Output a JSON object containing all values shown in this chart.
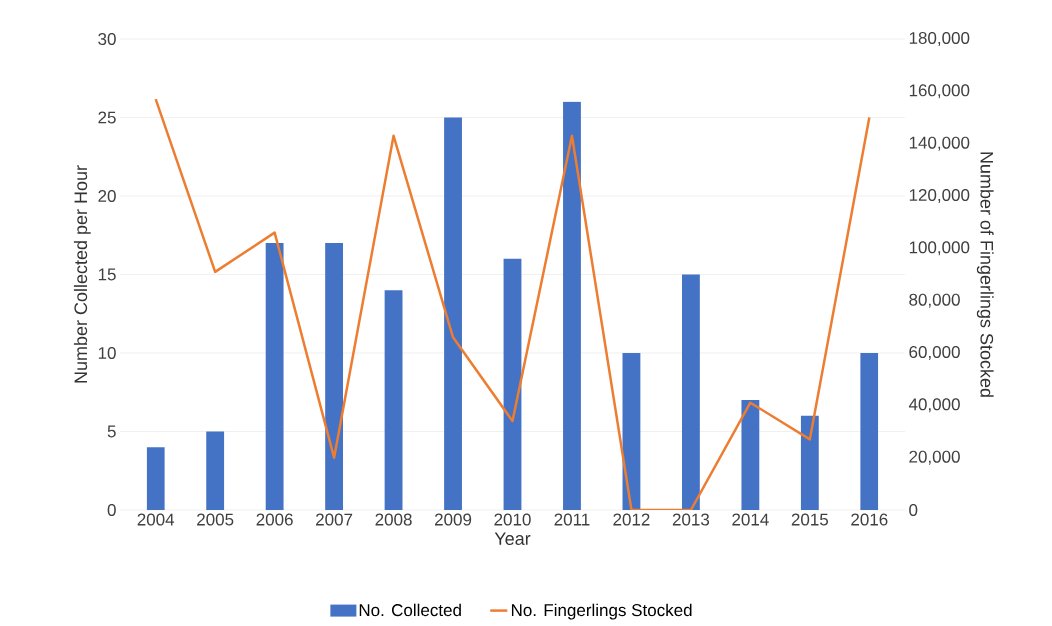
{
  "chart_data": {
    "type": "bar",
    "xlabel": "Year",
    "ylabel": "Number Collected per Hour",
    "y2label": "Number of Fingerlings Stocked",
    "categories": [
      "2004",
      "2005",
      "2006",
      "2007",
      "2008",
      "2009",
      "2010",
      "2011",
      "2012",
      "2013",
      "2014",
      "2015",
      "2016"
    ],
    "series": [
      {
        "name": "No. Collected",
        "color": "#4472c4",
        "values": [
          4,
          5,
          17,
          17,
          14,
          25,
          16,
          26,
          10,
          15,
          7,
          6,
          10
        ]
      },
      {
        "name": "No. Fingerlings Stocked",
        "type": "line",
        "axis": "y2",
        "color": "#ed7d31",
        "values": [
          157000,
          91000,
          106000,
          20000,
          143000,
          66000,
          34000,
          143000,
          0,
          0,
          41000,
          27000,
          150000
        ]
      }
    ],
    "ylim": [
      0,
      30
    ],
    "yticks": [
      0,
      5,
      10,
      15,
      20,
      25,
      30
    ],
    "y2lim": [
      0,
      180000
    ],
    "y2ticks": [
      {
        "value": 0,
        "label": "0"
      },
      {
        "value": 20000,
        "label": "20,000"
      },
      {
        "value": 40000,
        "label": "40,000"
      },
      {
        "value": 60000,
        "label": "60,000"
      },
      {
        "value": 80000,
        "label": "80,000"
      },
      {
        "value": 100000,
        "label": "100,000"
      },
      {
        "value": 120000,
        "label": "120,000"
      },
      {
        "value": 140000,
        "label": "140,000"
      },
      {
        "value": 160000,
        "label": "160,000"
      },
      {
        "value": 180000,
        "label": "180,000"
      }
    ],
    "grid": "y",
    "legend": "bottom",
    "marker": "none",
    "line_style": "solid"
  }
}
